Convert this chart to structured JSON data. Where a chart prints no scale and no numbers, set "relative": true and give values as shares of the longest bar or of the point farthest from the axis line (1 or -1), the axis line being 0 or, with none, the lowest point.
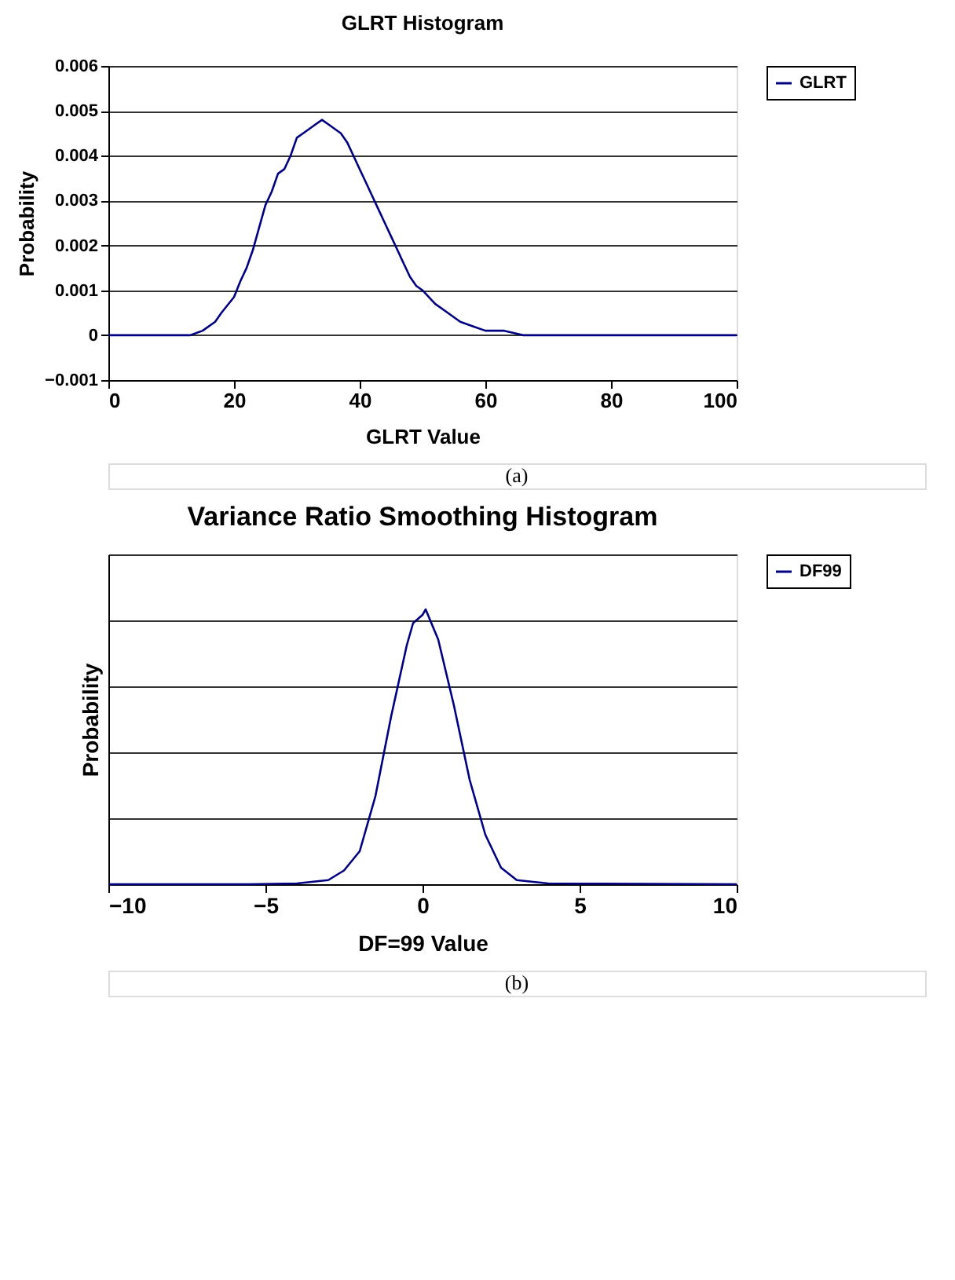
{
  "chart_data": [
    {
      "type": "line",
      "title": "GLRT Histogram",
      "xlabel": "GLRT Value",
      "ylabel": "Probability",
      "x": [
        0,
        12,
        13,
        15,
        17,
        18,
        20,
        21,
        22,
        23,
        24,
        25,
        26,
        27,
        28,
        29,
        30,
        31,
        32,
        33,
        34,
        35,
        36,
        37,
        38,
        39,
        40,
        41,
        42,
        43,
        44,
        45,
        46,
        47,
        48,
        49,
        50,
        52,
        54,
        56,
        58,
        60,
        63,
        66,
        70,
        100
      ],
      "series": [
        {
          "name": "GLRT",
          "color": "#000080",
          "values": [
            0,
            0,
            0,
            0.0001,
            0.0003,
            0.0005,
            0.00085,
            0.0012,
            0.0015,
            0.0019,
            0.0024,
            0.0029,
            0.0032,
            0.0036,
            0.0037,
            0.004,
            0.0044,
            0.0045,
            0.0046,
            0.0047,
            0.0048,
            0.0047,
            0.0046,
            0.0045,
            0.0043,
            0.004,
            0.0037,
            0.0034,
            0.0031,
            0.0028,
            0.0025,
            0.0022,
            0.0019,
            0.0016,
            0.0013,
            0.0011,
            0.001,
            0.0007,
            0.0005,
            0.0003,
            0.0002,
            0.0001,
            0.0001,
            0,
            0,
            0
          ]
        }
      ],
      "xlim": [
        0,
        100
      ],
      "xticks": [
        0,
        20,
        40,
        60,
        80,
        100
      ],
      "ylim": [
        -0.001,
        0.006
      ],
      "yticks": [
        -0.001,
        0,
        0.001,
        0.002,
        0.003,
        0.004,
        0.005,
        0.006
      ],
      "grid": "y",
      "legend": "right",
      "annotations": [
        "(a)"
      ]
    },
    {
      "type": "line",
      "title": "Variance Ratio Smoothing Histogram",
      "xlabel": "DF=99 Value",
      "ylabel": "Probability",
      "relative": true,
      "x": [
        -10,
        -5.5,
        -4,
        -3,
        -2.5,
        -2,
        -1.5,
        -1,
        -0.5,
        -0.3,
        0,
        0.1,
        0.5,
        1,
        1.5,
        2,
        2.5,
        3,
        4,
        10
      ],
      "series": [
        {
          "name": "DF99",
          "color": "#000080",
          "values": [
            0,
            0,
            0.003,
            0.015,
            0.05,
            0.12,
            0.32,
            0.61,
            0.87,
            0.95,
            0.98,
            1,
            0.89,
            0.65,
            0.38,
            0.18,
            0.06,
            0.015,
            0.003,
            0
          ]
        }
      ],
      "xlim": [
        -10,
        10
      ],
      "xticks": [
        -10,
        -5,
        0,
        5,
        10
      ],
      "grid": "y",
      "legend": "right",
      "annotations": [
        "(b)"
      ]
    }
  ]
}
